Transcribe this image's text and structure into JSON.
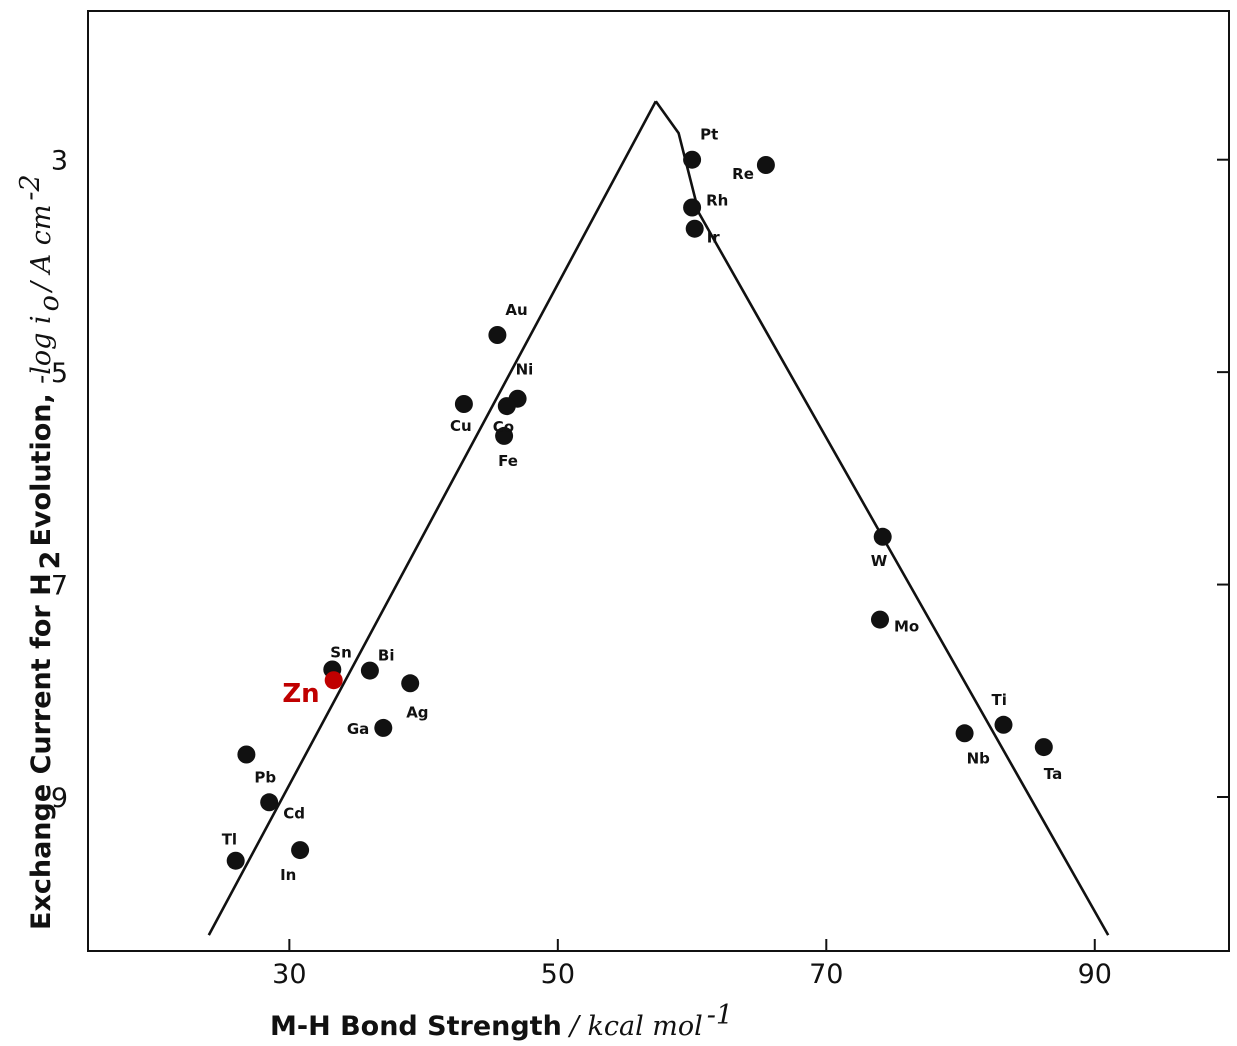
{
  "chart_data": {
    "type": "scatter",
    "title": "",
    "xlabel": {
      "main": "M-H Bond Strength",
      "unit": "/ kcal mol",
      "unit_sup": "-1"
    },
    "ylabel": {
      "main": "Exchange Current for H",
      "sub": "2",
      "main2": " Evolution, ",
      "unit": "-log i",
      "unit_sub": "o",
      "unit2": " / A cm",
      "unit_sup": "-2"
    },
    "xlim": [
      15,
      100
    ],
    "ylim": [
      10.45,
      1.6
    ],
    "y_inverted": true,
    "xticks": [
      30,
      50,
      70,
      90
    ],
    "yticks": [
      3,
      5,
      7,
      9
    ],
    "grid": false,
    "points": [
      {
        "label": "Pt",
        "x": 60.0,
        "y": 3.0
      },
      {
        "label": "Re",
        "x": 65.5,
        "y": 3.05
      },
      {
        "label": "Rh",
        "x": 60.0,
        "y": 3.45
      },
      {
        "label": "Ir",
        "x": 60.2,
        "y": 3.65
      },
      {
        "label": "Au",
        "x": 45.5,
        "y": 4.65
      },
      {
        "label": "Ni",
        "x": 47.0,
        "y": 5.25
      },
      {
        "label": "Co",
        "x": 46.2,
        "y": 5.32
      },
      {
        "label": "Cu",
        "x": 43.0,
        "y": 5.3
      },
      {
        "label": "Fe",
        "x": 46.0,
        "y": 5.6
      },
      {
        "label": "W",
        "x": 74.2,
        "y": 6.55
      },
      {
        "label": "Mo",
        "x": 74.0,
        "y": 7.33
      },
      {
        "label": "Ti",
        "x": 83.2,
        "y": 8.32
      },
      {
        "label": "Nb",
        "x": 80.3,
        "y": 8.4
      },
      {
        "label": "Ta",
        "x": 86.2,
        "y": 8.53
      },
      {
        "label": "Sn",
        "x": 33.2,
        "y": 7.8
      },
      {
        "label": "Zn",
        "x": 33.3,
        "y": 7.9,
        "highlight": true
      },
      {
        "label": "Bi",
        "x": 36.0,
        "y": 7.81
      },
      {
        "label": "Ag",
        "x": 39.0,
        "y": 7.93
      },
      {
        "label": "Ga",
        "x": 37.0,
        "y": 8.35
      },
      {
        "label": "Pb",
        "x": 26.8,
        "y": 8.6
      },
      {
        "label": "Cd",
        "x": 28.5,
        "y": 9.05
      },
      {
        "label": "Tl",
        "x": 26.0,
        "y": 9.6
      },
      {
        "label": "In",
        "x": 30.8,
        "y": 9.5
      }
    ],
    "volcano_line": {
      "left_branch": [
        [
          24.0,
          10.3
        ],
        [
          57.3,
          2.45
        ]
      ],
      "right_branch": [
        [
          57.3,
          2.45
        ],
        [
          59.0,
          2.75
        ],
        [
          60.5,
          3.5
        ],
        [
          91.0,
          10.3
        ]
      ]
    },
    "colors": {
      "point": "#111111",
      "highlight": "#c00000",
      "line": "#111111",
      "axis": "#111111"
    }
  }
}
